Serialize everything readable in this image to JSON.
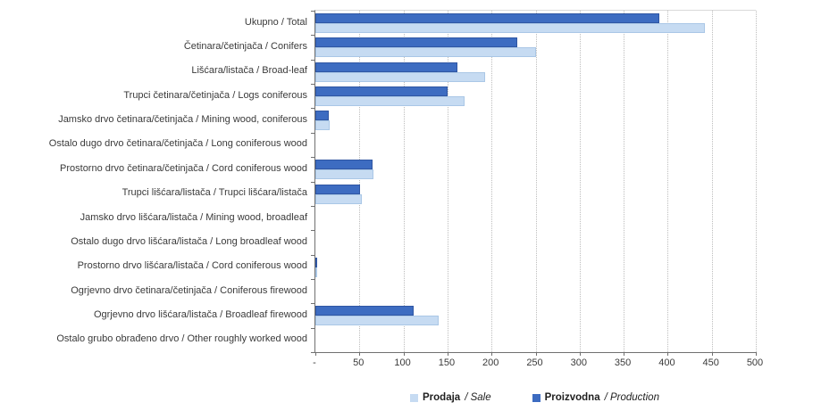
{
  "chart_data": {
    "type": "bar",
    "orientation": "horizontal",
    "title": "",
    "xlabel": "",
    "ylabel": "",
    "xlim": [
      0,
      500
    ],
    "x_tick_values": [
      0,
      50,
      100,
      150,
      200,
      250,
      300,
      350,
      400,
      450,
      500
    ],
    "x_tick_labels": [
      "-",
      "50",
      "100",
      "150",
      "200",
      "250",
      "300",
      "350",
      "400",
      "450",
      "500"
    ],
    "grid": "vertical-dotted",
    "legend_position": "bottom-center",
    "bar_row_order_top_to_bottom": [
      "Proizvodna / Production",
      "Prodaja / Sale"
    ],
    "categories": [
      "Ukupno / Total",
      "Četinara/četinjača / Conifers",
      "Lišćara/listača / Broad-leaf",
      "Trupci četinara/četinjača / Logs coniferous",
      "Jamsko drvo četinara/četinjača / Mining wood, coniferous",
      "Ostalo dugo drvo četinara/četinjača / Long coniferous wood",
      "Prostorno drvo četinara/četinjača / Cord coniferous wood",
      "Trupci lišćara/listača / Trupci lišćara/listača",
      "Jamsko drvo lišćara/listača / Mining wood, broadleaf",
      "Ostalo dugo drvo lišćara/listača / Long broadleaf wood",
      "Prostorno drvo lišćara/listača / Cord coniferous wood",
      "Ogrjevno drvo četinara/četinjača / Coniferous firewood",
      "Ogrjevno drvo lišćara/listača / Broadleaf firewood",
      "Ostalo grubo obrađeno drvo / Other roughly worked wood"
    ],
    "series": [
      {
        "name": "Prodaja / Sale",
        "name_hr": "Prodaja",
        "name_en": "Sale",
        "color": "#c6dbf2",
        "values": [
          442,
          250,
          193,
          169,
          16,
          0,
          66,
          53,
          0,
          0,
          1,
          0,
          140,
          0
        ]
      },
      {
        "name": "Proizvodna / Production",
        "name_hr": "Proizvodna",
        "name_en": "Production",
        "color": "#3d6cc1",
        "values": [
          390,
          229,
          161,
          150,
          15,
          0,
          65,
          51,
          0,
          0,
          2,
          0,
          112,
          0
        ]
      }
    ]
  },
  "legend": {
    "separator": " / ",
    "items": [
      {
        "label_hr": "Prodaja",
        "label_en": "Sale",
        "color": "#c6dbf2"
      },
      {
        "label_hr": "Proizvodna",
        "label_en": "Production",
        "color": "#3d6cc1"
      }
    ]
  }
}
